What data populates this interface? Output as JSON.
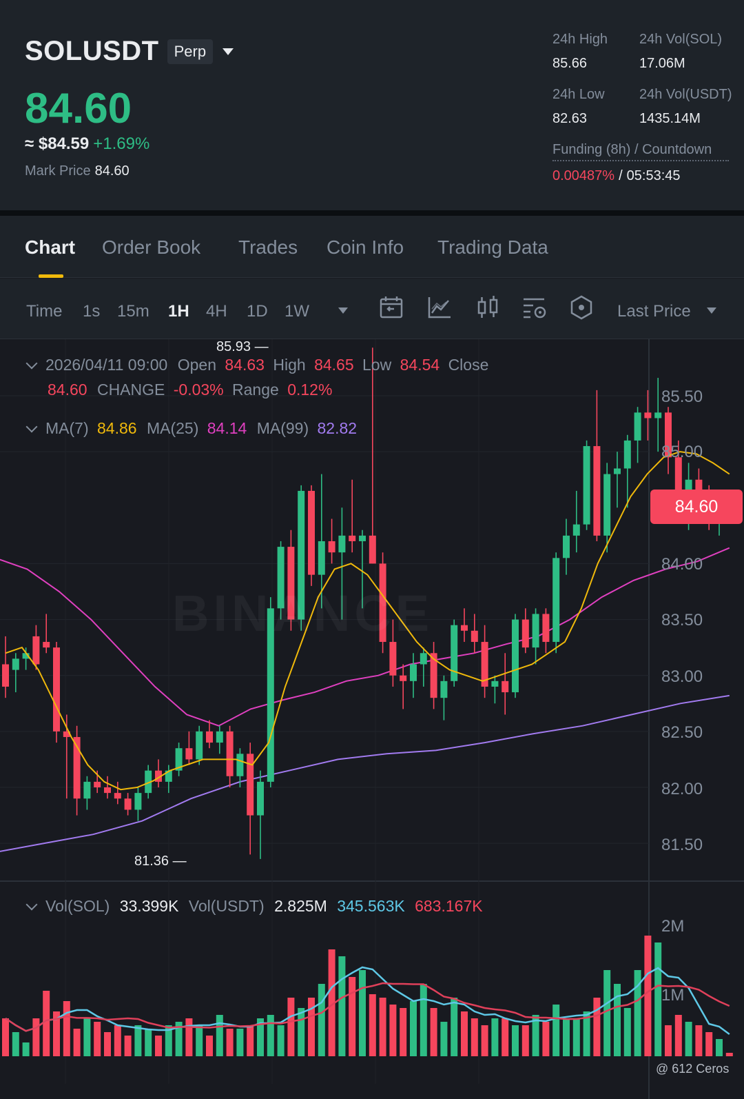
{
  "header": {
    "symbol": "SOLUSDT",
    "contract_type": "Perp",
    "last_price": "84.60",
    "fiat_price": "≈ $84.59",
    "change_pct": "+1.69%",
    "mark_price_label": "Mark Price",
    "mark_price": "84.60",
    "stats": {
      "high_label": "24h High",
      "high": "85.66",
      "vol_sol_label": "24h Vol(SOL)",
      "vol_sol": "17.06M",
      "low_label": "24h Low",
      "low": "82.63",
      "vol_usdt_label": "24h Vol(USDT)",
      "vol_usdt": "1435.14M"
    },
    "funding_label": "Funding (8h) / Countdown",
    "funding_rate": "0.00487%",
    "funding_sep": "/",
    "countdown": "05:53:45"
  },
  "tabs": [
    "Chart",
    "Order Book",
    "Trades",
    "Coin Info",
    "Trading Data"
  ],
  "active_tab": "Chart",
  "toolbar": {
    "time_label": "Time",
    "intervals": [
      "1s",
      "15m",
      "1H",
      "4H",
      "1D",
      "1W"
    ],
    "active_interval": "1H",
    "price_type": "Last Price",
    "icons": [
      "calendar-icon",
      "indicator-icon",
      "candle-type-icon",
      "chart-settings-icon",
      "depth-icon"
    ]
  },
  "ohlc": {
    "date": "2026/04/11 09:00",
    "open_label": "Open",
    "open": "84.63",
    "high_label": "High",
    "high": "84.65",
    "low_label": "Low",
    "low": "84.54",
    "close_label": "Close",
    "close": "84.60",
    "change_label": "CHANGE",
    "change": "-0.03%",
    "range_label": "Range",
    "range": "0.12%"
  },
  "ma": {
    "ma7_label": "MA(7)",
    "ma7": "84.86",
    "ma25_label": "MA(25)",
    "ma25": "84.14",
    "ma99_label": "MA(99)",
    "ma99": "82.82"
  },
  "volume": {
    "vol_sol_label": "Vol(SOL)",
    "vol_sol": "33.399K",
    "vol_usdt_label": "Vol(USDT)",
    "vol_usdt": "2.825M",
    "ma5": "345.563K",
    "ma10": "683.167K"
  },
  "price_axis": [
    "85.50",
    "85.00",
    "84.00",
    "83.50",
    "83.00",
    "82.50",
    "82.00",
    "81.50"
  ],
  "current_price_tag": "84.60",
  "max_label": "85.93",
  "min_label": "81.36",
  "volume_axis": [
    "2M",
    "1M"
  ],
  "watermark": "BINANCE",
  "footer_brand": "@ 612 Ceros",
  "colors": {
    "up": "#2ebd85",
    "down": "#f6465d",
    "accent": "#f0b90b",
    "ma7": "#f0b90b",
    "ma25": "#e040c0",
    "ma99": "#a27bf0",
    "vol_ma5": "#5ec8e6",
    "vol_ma10": "#e0405a"
  },
  "chart_data": {
    "type": "candlestick",
    "interval": "1H",
    "price_axis_range": [
      81.2,
      86.0
    ],
    "candles": [
      [
        83.1,
        83.35,
        82.8,
        82.9
      ],
      [
        83.05,
        83.2,
        82.85,
        83.15
      ],
      [
        83.15,
        83.25,
        83.05,
        83.2
      ],
      [
        83.35,
        83.45,
        83.05,
        83.1
      ],
      [
        83.3,
        83.55,
        83.2,
        83.25
      ],
      [
        83.25,
        83.3,
        82.4,
        82.5
      ],
      [
        82.5,
        82.65,
        81.9,
        82.45
      ],
      [
        82.45,
        82.55,
        81.75,
        81.9
      ],
      [
        81.9,
        82.1,
        81.8,
        82.05
      ],
      [
        82.05,
        82.15,
        81.95,
        82.0
      ],
      [
        82.0,
        82.1,
        81.9,
        81.95
      ],
      [
        81.95,
        82.05,
        81.85,
        81.9
      ],
      [
        81.9,
        81.95,
        81.75,
        81.8
      ],
      [
        81.8,
        82.0,
        81.7,
        81.95
      ],
      [
        81.95,
        82.2,
        81.9,
        82.15
      ],
      [
        82.15,
        82.25,
        82.0,
        82.05
      ],
      [
        82.05,
        82.2,
        81.95,
        82.15
      ],
      [
        82.15,
        82.4,
        82.1,
        82.35
      ],
      [
        82.35,
        82.5,
        82.2,
        82.25
      ],
      [
        82.25,
        82.55,
        82.2,
        82.5
      ],
      [
        82.5,
        82.6,
        82.35,
        82.4
      ],
      [
        82.4,
        82.55,
        82.3,
        82.5
      ],
      [
        82.5,
        82.55,
        82.0,
        82.1
      ],
      [
        82.1,
        82.35,
        82.0,
        82.3
      ],
      [
        82.3,
        82.4,
        81.4,
        81.75
      ],
      [
        81.75,
        82.15,
        81.36,
        82.05
      ],
      [
        82.05,
        83.7,
        82.0,
        83.6
      ],
      [
        83.6,
        84.2,
        83.5,
        84.15
      ],
      [
        84.15,
        84.3,
        83.4,
        83.5
      ],
      [
        83.5,
        84.7,
        83.4,
        84.65
      ],
      [
        84.65,
        84.7,
        83.8,
        83.9
      ],
      [
        83.9,
        84.8,
        83.6,
        84.2
      ],
      [
        84.2,
        84.4,
        84.0,
        84.1
      ],
      [
        84.1,
        84.5,
        83.5,
        84.25
      ],
      [
        84.25,
        84.75,
        84.1,
        84.2
      ],
      [
        84.2,
        84.3,
        83.6,
        84.25
      ],
      [
        84.25,
        85.93,
        84.0,
        84.0
      ],
      [
        84.0,
        84.1,
        83.2,
        83.3
      ],
      [
        83.3,
        83.5,
        82.9,
        83.0
      ],
      [
        83.0,
        83.1,
        82.7,
        82.95
      ],
      [
        82.95,
        83.2,
        82.8,
        83.1
      ],
      [
        83.1,
        83.25,
        82.9,
        83.2
      ],
      [
        83.2,
        83.3,
        82.7,
        82.8
      ],
      [
        82.8,
        83.0,
        82.6,
        82.95
      ],
      [
        82.95,
        83.5,
        82.9,
        83.45
      ],
      [
        83.45,
        83.6,
        83.3,
        83.4
      ],
      [
        83.4,
        83.55,
        83.2,
        83.3
      ],
      [
        83.3,
        83.45,
        82.8,
        82.9
      ],
      [
        82.9,
        83.0,
        82.75,
        82.95
      ],
      [
        82.95,
        83.2,
        82.65,
        82.85
      ],
      [
        82.85,
        83.55,
        82.8,
        83.5
      ],
      [
        83.5,
        83.6,
        83.2,
        83.25
      ],
      [
        83.25,
        83.6,
        83.1,
        83.55
      ],
      [
        83.55,
        83.6,
        83.2,
        83.3
      ],
      [
        83.3,
        84.1,
        83.2,
        84.05
      ],
      [
        84.05,
        84.4,
        83.9,
        84.25
      ],
      [
        84.25,
        84.65,
        84.1,
        84.35
      ],
      [
        84.35,
        85.1,
        84.3,
        85.05
      ],
      [
        85.05,
        85.55,
        84.2,
        84.25
      ],
      [
        84.25,
        84.9,
        84.1,
        84.8
      ],
      [
        84.8,
        85.0,
        84.5,
        84.85
      ],
      [
        84.85,
        85.15,
        84.5,
        85.1
      ],
      [
        85.1,
        85.4,
        84.9,
        85.35
      ],
      [
        85.35,
        85.55,
        85.1,
        85.3
      ],
      [
        85.3,
        85.66,
        85.0,
        85.35
      ],
      [
        85.35,
        85.4,
        84.8,
        84.95
      ],
      [
        84.95,
        85.1,
        84.4,
        84.55
      ],
      [
        84.55,
        84.9,
        84.3,
        84.75
      ],
      [
        84.75,
        84.85,
        84.5,
        84.6
      ],
      [
        84.6,
        84.7,
        84.3,
        84.4
      ],
      [
        84.4,
        84.65,
        84.25,
        84.6
      ],
      [
        84.63,
        84.65,
        84.54,
        84.6
      ]
    ],
    "ma7": [
      83.2,
      83.25,
      83.05,
      82.75,
      82.45,
      82.2,
      82.05,
      81.98,
      82.0,
      82.06,
      82.15,
      82.2,
      82.25,
      82.25,
      82.25,
      82.2,
      82.4,
      82.9,
      83.3,
      83.7,
      83.95,
      84.0,
      83.9,
      83.7,
      83.5,
      83.3,
      83.15,
      83.05,
      83.0,
      82.95,
      83.0,
      83.05,
      83.1,
      83.2,
      83.3,
      83.6,
      84.0,
      84.3,
      84.6,
      84.8,
      84.95,
      85.0,
      84.98,
      84.9,
      84.8
    ],
    "ma25": [
      84.05,
      83.95,
      83.75,
      83.5,
      83.2,
      82.9,
      82.65,
      82.55,
      82.7,
      82.78,
      82.85,
      82.95,
      83.0,
      83.1,
      83.15,
      83.2,
      83.28,
      83.35,
      83.5,
      83.7,
      83.85,
      83.95,
      84.02,
      84.14
    ],
    "ma99": [
      81.42,
      81.5,
      81.58,
      81.7,
      81.9,
      82.05,
      82.15,
      82.25,
      82.3,
      82.33,
      82.4,
      82.48,
      82.55,
      82.65,
      82.75,
      82.82
    ],
    "volume": [
      0.55,
      0.35,
      0.2,
      0.55,
      0.95,
      0.65,
      0.8,
      0.4,
      0.55,
      0.5,
      0.35,
      0.45,
      0.3,
      0.45,
      0.4,
      0.3,
      0.45,
      0.5,
      0.55,
      0.45,
      0.3,
      0.6,
      0.4,
      0.4,
      0.45,
      0.55,
      0.6,
      0.45,
      0.85,
      0.7,
      0.85,
      1.05,
      1.55,
      1.45,
      1.15,
      1.25,
      0.9,
      0.85,
      0.75,
      0.7,
      0.8,
      1.05,
      0.7,
      0.5,
      0.85,
      0.65,
      0.55,
      0.45,
      0.55,
      0.55,
      0.45,
      0.45,
      0.6,
      0.5,
      0.75,
      0.55,
      0.55,
      0.65,
      0.85,
      1.25,
      1.05,
      0.7,
      1.25,
      1.75,
      1.65,
      0.45,
      0.6,
      0.5,
      0.45,
      0.35,
      0.25,
      0.05
    ]
  }
}
